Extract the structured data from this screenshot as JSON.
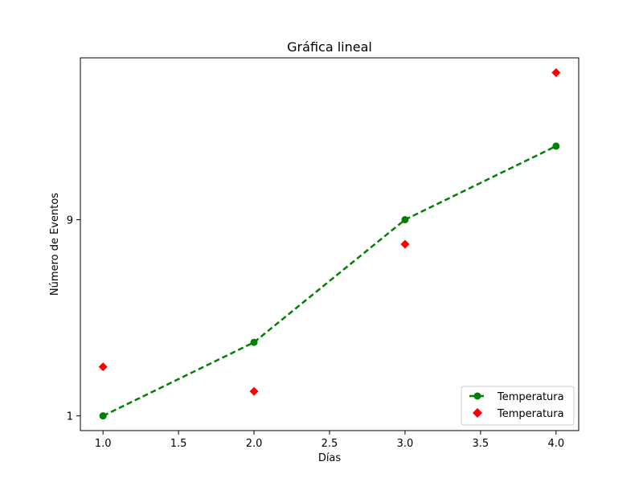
{
  "chart_data": {
    "type": "line",
    "title": "Gráfica lineal",
    "xlabel": "Días",
    "ylabel": "Número de Eventos",
    "xlim": [
      0.85,
      4.15
    ],
    "ylim": [
      0.4,
      15.6
    ],
    "xticks": [
      1.0,
      1.5,
      2.0,
      2.5,
      3.0,
      3.5,
      4.0
    ],
    "xtick_labels": [
      "1.0",
      "1.5",
      "2.0",
      "2.5",
      "3.0",
      "3.5",
      "4.0"
    ],
    "yticks": [
      1,
      9
    ],
    "ytick_labels": [
      "1",
      "9"
    ],
    "grid": false,
    "legend_position": "lower-right",
    "series": [
      {
        "name": "Temperatura",
        "style": "dashed-line-circle-markers",
        "color": "#008000",
        "x": [
          1,
          2,
          3,
          4
        ],
        "y": [
          1,
          4,
          9,
          12
        ]
      },
      {
        "name": "Temperatura",
        "style": "diamond-markers",
        "color": "#ff0000",
        "x": [
          1,
          2,
          3,
          4
        ],
        "y": [
          3,
          2,
          8,
          15
        ]
      }
    ]
  }
}
